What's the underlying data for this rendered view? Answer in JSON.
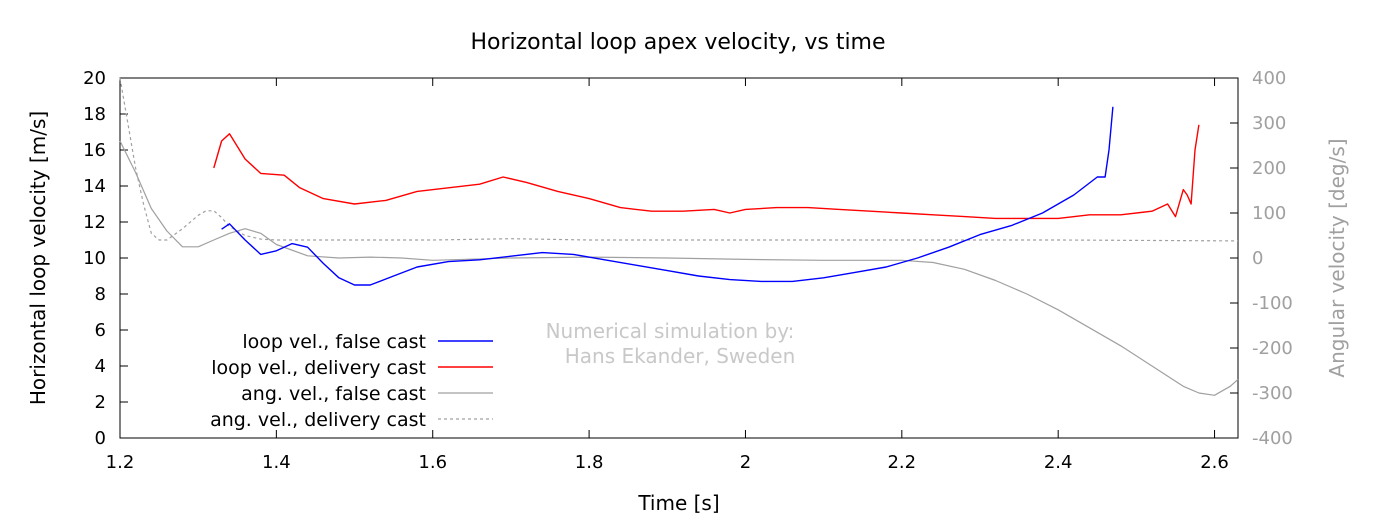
{
  "chart_data": {
    "type": "line",
    "title": "Horizontal loop apex velocity, vs time",
    "xlabel": "Time [s]",
    "ylabel": "Horizontal loop velocity [m/s]",
    "y2label": "Angular velocity [deg/s]",
    "xlim": [
      1.2,
      2.63
    ],
    "ylim": [
      0,
      20
    ],
    "y2lim": [
      -400,
      400
    ],
    "x_ticks": [
      1.2,
      1.4,
      1.6,
      1.8,
      2,
      2.2,
      2.4,
      2.6
    ],
    "x_tick_labels": [
      "1.2",
      "1.4",
      "1.6",
      "1.8",
      "2",
      "2.2",
      "2.4",
      "2.6"
    ],
    "y_ticks": [
      0,
      2,
      4,
      6,
      8,
      10,
      12,
      14,
      16,
      18,
      20
    ],
    "y_tick_labels": [
      "0",
      "2",
      "4",
      "6",
      "8",
      "10",
      "12",
      "14",
      "16",
      "18",
      "20"
    ],
    "y2_ticks": [
      -400,
      -300,
      -200,
      -100,
      0,
      100,
      200,
      300,
      400
    ],
    "y2_tick_labels": [
      "-400",
      "-300",
      "-200",
      "-100",
      "0",
      "100",
      "200",
      "300",
      "400"
    ],
    "legend_position": "bottom-left",
    "annotation": [
      "Numerical simulation by:",
      "Hans Ekander, Sweden"
    ],
    "series": [
      {
        "name": "loop vel., false cast",
        "axis": "y",
        "color": "#0000ff",
        "dash": "solid",
        "x": [
          1.33,
          1.34,
          1.36,
          1.38,
          1.4,
          1.42,
          1.44,
          1.46,
          1.48,
          1.5,
          1.52,
          1.55,
          1.58,
          1.62,
          1.66,
          1.7,
          1.74,
          1.78,
          1.82,
          1.86,
          1.9,
          1.94,
          1.98,
          2.02,
          2.06,
          2.1,
          2.14,
          2.18,
          2.22,
          2.26,
          2.3,
          2.34,
          2.38,
          2.42,
          2.45,
          2.46,
          2.465,
          2.47
        ],
        "y": [
          11.6,
          11.9,
          11.0,
          10.2,
          10.4,
          10.8,
          10.6,
          9.7,
          8.9,
          8.5,
          8.5,
          9.0,
          9.5,
          9.8,
          9.9,
          10.1,
          10.3,
          10.2,
          9.9,
          9.6,
          9.3,
          9.0,
          8.8,
          8.7,
          8.7,
          8.9,
          9.2,
          9.5,
          10.0,
          10.6,
          11.3,
          11.8,
          12.5,
          13.5,
          14.5,
          14.5,
          16.0,
          18.4
        ]
      },
      {
        "name": "loop vel., delivery cast",
        "axis": "y",
        "color": "#ff0000",
        "dash": "solid",
        "x": [
          1.32,
          1.33,
          1.34,
          1.36,
          1.38,
          1.41,
          1.43,
          1.46,
          1.5,
          1.54,
          1.58,
          1.62,
          1.66,
          1.69,
          1.72,
          1.76,
          1.8,
          1.84,
          1.88,
          1.92,
          1.96,
          1.98,
          2.0,
          2.04,
          2.08,
          2.12,
          2.16,
          2.2,
          2.24,
          2.28,
          2.32,
          2.36,
          2.4,
          2.44,
          2.48,
          2.52,
          2.54,
          2.55,
          2.56,
          2.565,
          2.57,
          2.575,
          2.58
        ],
        "y": [
          15.0,
          16.5,
          16.9,
          15.5,
          14.7,
          14.6,
          13.9,
          13.3,
          13.0,
          13.2,
          13.7,
          13.9,
          14.1,
          14.5,
          14.2,
          13.7,
          13.3,
          12.8,
          12.6,
          12.6,
          12.7,
          12.5,
          12.7,
          12.8,
          12.8,
          12.7,
          12.6,
          12.5,
          12.4,
          12.3,
          12.2,
          12.2,
          12.2,
          12.4,
          12.4,
          12.6,
          13.0,
          12.3,
          13.8,
          13.5,
          13.0,
          16.0,
          17.4
        ]
      },
      {
        "name": "ang. vel., false cast",
        "axis": "y2",
        "color": "#a0a0a0",
        "dash": "solid",
        "x": [
          1.2,
          1.22,
          1.24,
          1.26,
          1.28,
          1.3,
          1.32,
          1.34,
          1.36,
          1.38,
          1.4,
          1.44,
          1.48,
          1.52,
          1.56,
          1.6,
          1.7,
          1.8,
          1.9,
          2.0,
          2.1,
          2.2,
          2.24,
          2.28,
          2.32,
          2.36,
          2.4,
          2.44,
          2.48,
          2.52,
          2.56,
          2.58,
          2.6,
          2.62,
          2.63
        ],
        "y": [
          260,
          190,
          110,
          60,
          25,
          25,
          40,
          55,
          65,
          55,
          30,
          5,
          0,
          2,
          0,
          -5,
          0,
          2,
          0,
          -3,
          -5,
          -5,
          -10,
          -25,
          -50,
          -80,
          -115,
          -155,
          -195,
          -240,
          -285,
          -300,
          -305,
          -285,
          -270
        ]
      },
      {
        "name": "ang. vel., delivery cast",
        "axis": "y2",
        "color": "#a0a0a0",
        "dash": "dashed",
        "x": [
          1.2,
          1.21,
          1.22,
          1.23,
          1.24,
          1.25,
          1.26,
          1.28,
          1.3,
          1.31,
          1.32,
          1.33,
          1.34,
          1.36,
          1.38,
          1.4,
          1.44,
          1.5,
          1.6,
          1.7,
          1.8,
          1.9,
          2.0,
          2.2,
          2.4,
          2.63
        ],
        "y": [
          400,
          300,
          200,
          120,
          55,
          40,
          40,
          65,
          95,
          105,
          105,
          90,
          70,
          50,
          42,
          40,
          40,
          40,
          40,
          43,
          40,
          40,
          40,
          40,
          40,
          38
        ]
      }
    ]
  }
}
